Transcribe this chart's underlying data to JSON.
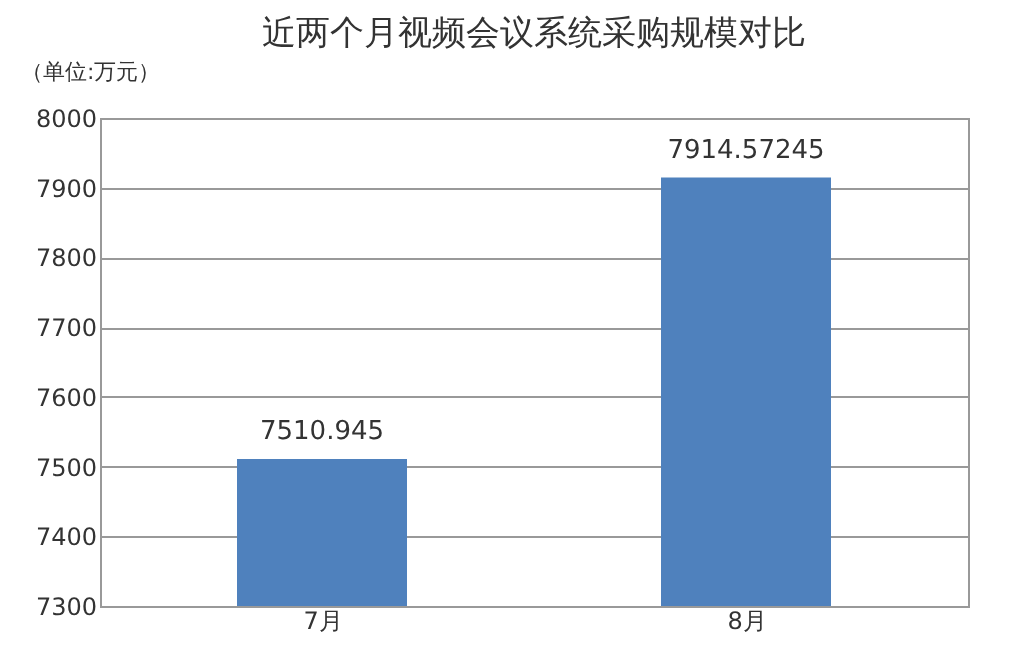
{
  "chart_data": {
    "type": "bar",
    "title": "近两个月视频会议系统采购规模对比",
    "ylabel": "（单位:万元）",
    "categories": [
      "7月",
      "8月"
    ],
    "values": [
      7510.945,
      7914.57245
    ],
    "color": "#4f81bd",
    "ylim": [
      7300,
      8000
    ],
    "yticks": [
      7300,
      7400,
      7500,
      7600,
      7700,
      7800,
      7900,
      8000
    ],
    "grid": "y",
    "data_labels": true
  }
}
